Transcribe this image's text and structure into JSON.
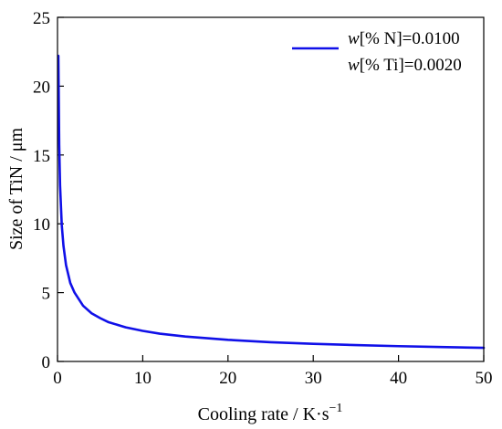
{
  "chart_data": {
    "type": "line",
    "xlabel_main": "Cooling rate / K·s",
    "xlabel_sup": "−1",
    "ylabel": "Size of TiN / μm",
    "xlim": [
      0,
      50
    ],
    "ylim": [
      0,
      25
    ],
    "x_ticks": [
      0,
      10,
      20,
      30,
      40,
      50
    ],
    "y_ticks": [
      0,
      5,
      10,
      15,
      20,
      25
    ],
    "grid": false,
    "legend_position": "top-right",
    "legend": {
      "line1_italic": "w",
      "line1_rest": "[% N]=0.0100",
      "line2_italic": "w",
      "line2_rest": "[% Ti]=0.0020"
    },
    "series": [
      {
        "color": "#1010e8",
        "x": [
          0.1,
          0.2,
          0.3,
          0.5,
          0.7,
          1,
          1.5,
          2,
          3,
          4,
          5,
          6,
          8,
          10,
          12,
          15,
          20,
          25,
          30,
          35,
          40,
          45,
          50
        ],
        "y": [
          22.2,
          15.7,
          12.8,
          9.9,
          8.4,
          7.0,
          5.7,
          5.0,
          4.05,
          3.5,
          3.15,
          2.85,
          2.48,
          2.22,
          2.02,
          1.81,
          1.57,
          1.4,
          1.28,
          1.19,
          1.11,
          1.05,
          0.99
        ]
      }
    ]
  }
}
